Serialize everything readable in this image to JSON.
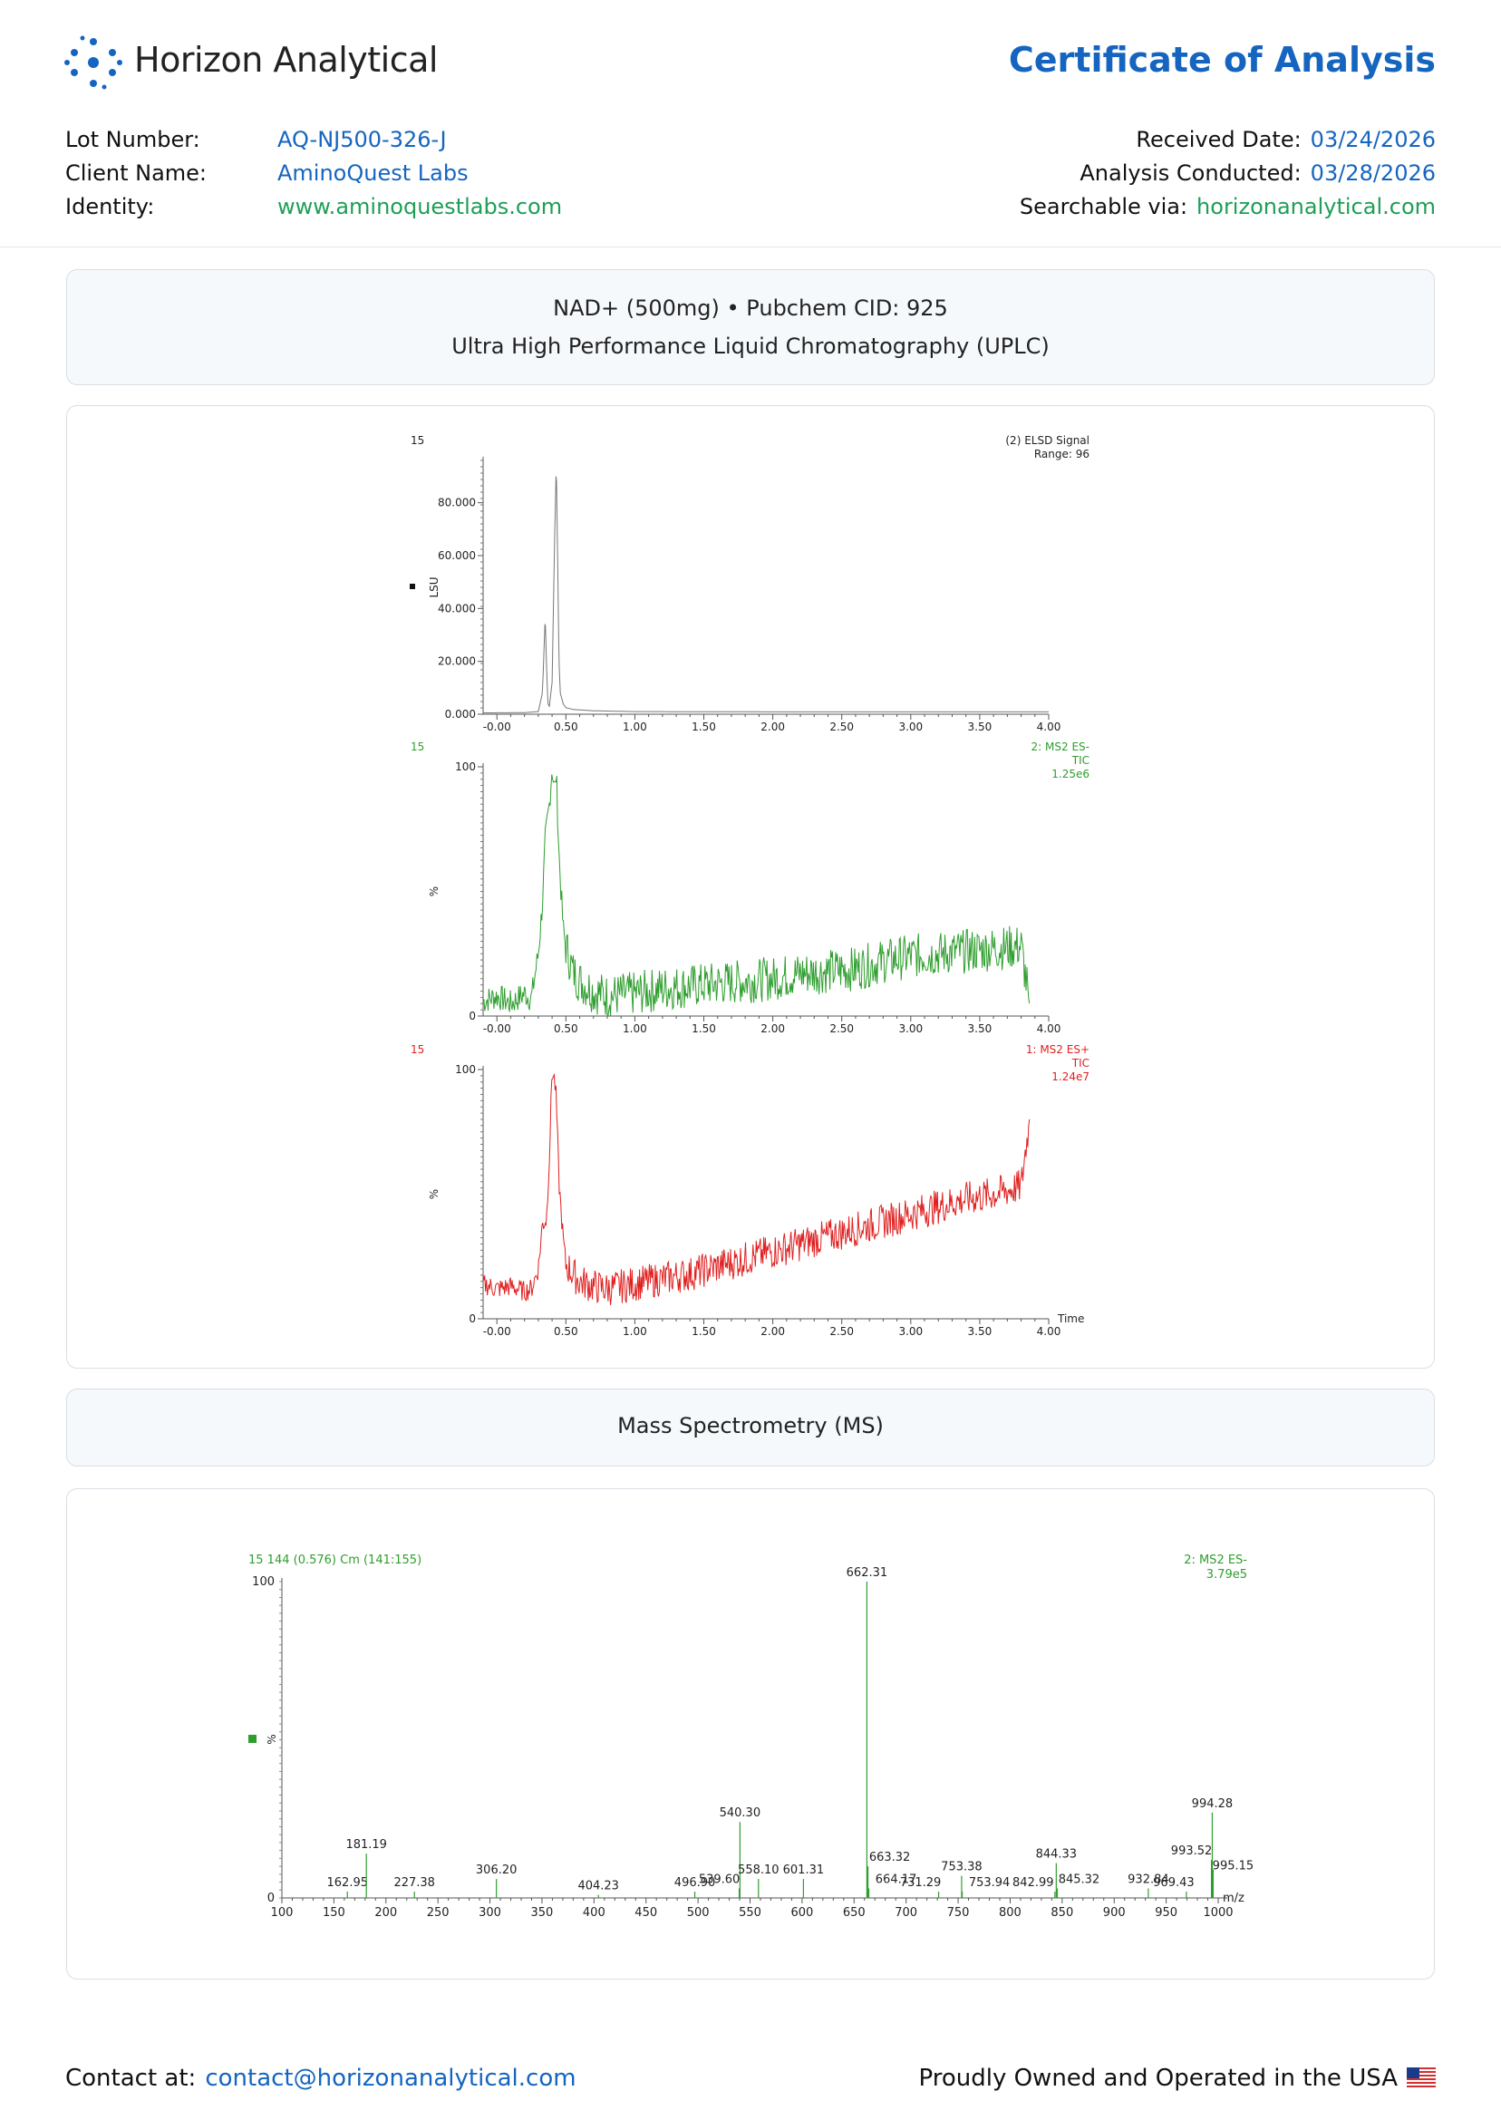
{
  "header": {
    "brand": "Horizon Analytical",
    "doc_title": "Certificate of Analysis"
  },
  "meta_left": [
    {
      "label": "Lot Number:",
      "value": "AQ-NJ500-326-J",
      "color": "#1565c0"
    },
    {
      "label": "Client Name:",
      "value": "AminoQuest Labs",
      "color": "#1565c0"
    },
    {
      "label": "Identity:",
      "value": "www.aminoquestlabs.com",
      "color": "#1e9e57"
    }
  ],
  "meta_right": [
    {
      "label": "Received Date:",
      "value": "03/24/2026",
      "color": "#1565c0"
    },
    {
      "label": "Analysis Conducted:",
      "value": "03/28/2026",
      "color": "#1565c0"
    },
    {
      "label": "Searchable via:",
      "value": "horizonanalytical.com",
      "color": "#1e9e57"
    }
  ],
  "compound_panel": {
    "line1": "NAD+ (500mg) • Pubchem CID: 925",
    "line2": "Ultra High Performance Liquid Chromatography (UPLC)"
  },
  "ms_panel": {
    "title": "Mass Spectrometry (MS)"
  },
  "footer": {
    "contact_label": "Contact at:",
    "contact_email": "contact@horizonanalytical.com",
    "tagline": "Proudly Owned and Operated in the USA",
    "flag_icon": "us-flag-icon"
  },
  "chart_data": [
    {
      "type": "line",
      "sample_label": "15",
      "title_lines": [
        "(2) ELSD Signal",
        "Range: 96"
      ],
      "ylabel": "LSU",
      "color": "#777777",
      "xlim": [
        -0.1,
        4.0
      ],
      "ylim": [
        0,
        96
      ],
      "x_ticks": [
        "-0.00",
        "0.50",
        "1.00",
        "1.50",
        "2.00",
        "2.50",
        "3.00",
        "3.50",
        "4.00"
      ],
      "y_ticks": [
        "0.000",
        "20.000",
        "40.000",
        "60.000",
        "80.000"
      ],
      "y_tick_values": [
        0,
        20,
        40,
        60,
        80
      ],
      "x": [
        -0.1,
        0.2,
        0.3,
        0.33,
        0.35,
        0.36,
        0.37,
        0.38,
        0.4,
        0.42,
        0.43,
        0.44,
        0.45,
        0.46,
        0.48,
        0.5,
        0.55,
        0.7,
        1.0,
        2.0,
        3.0,
        4.0
      ],
      "values": [
        0.5,
        0.6,
        1.0,
        8,
        37,
        18,
        4,
        3,
        12,
        70,
        95,
        60,
        20,
        8,
        4,
        2.5,
        1.8,
        1.3,
        1.0,
        0.9,
        0.9,
        0.9
      ]
    },
    {
      "type": "line",
      "sample_label": "15",
      "title_lines": [
        "2: MS2 ES-",
        "TIC",
        "1.25e6"
      ],
      "ylabel": "%",
      "color": "#2e9e2e",
      "xlim": [
        -0.1,
        4.0
      ],
      "ylim": [
        0,
        100
      ],
      "x_ticks": [
        "-0.00",
        "0.50",
        "1.00",
        "1.50",
        "2.00",
        "2.50",
        "3.00",
        "3.50",
        "4.00"
      ],
      "y_ticks": [
        "0",
        "100"
      ],
      "y_tick_values": [
        0,
        100
      ],
      "x": [
        -0.1,
        0.0,
        0.1,
        0.2,
        0.25,
        0.3,
        0.33,
        0.35,
        0.38,
        0.4,
        0.42,
        0.43,
        0.45,
        0.48,
        0.5,
        0.55,
        0.6,
        0.7,
        0.8,
        1.0,
        1.2,
        1.4,
        1.6,
        1.8,
        2.0,
        2.2,
        2.4,
        2.6,
        2.8,
        3.0,
        3.2,
        3.4,
        3.6,
        3.8,
        3.86
      ],
      "values": [
        6,
        8,
        5,
        9,
        7,
        25,
        45,
        70,
        85,
        100,
        90,
        98,
        65,
        35,
        28,
        18,
        14,
        10,
        8,
        9,
        11,
        12,
        13,
        14,
        15,
        17,
        18,
        19,
        22,
        24,
        25,
        26,
        27,
        28,
        5
      ]
    },
    {
      "type": "line",
      "sample_label": "15",
      "title_lines": [
        "1: MS2 ES+",
        "TIC",
        "1.24e7"
      ],
      "ylabel": "%",
      "xlabel": "Time",
      "color": "#e02020",
      "xlim": [
        -0.1,
        4.0
      ],
      "ylim": [
        0,
        100
      ],
      "x_ticks": [
        "-0.00",
        "0.50",
        "1.00",
        "1.50",
        "2.00",
        "2.50",
        "3.00",
        "3.50",
        "4.00"
      ],
      "y_ticks": [
        "0",
        "100"
      ],
      "y_tick_values": [
        0,
        100
      ],
      "x": [
        -0.1,
        0.0,
        0.1,
        0.2,
        0.25,
        0.3,
        0.33,
        0.36,
        0.38,
        0.4,
        0.42,
        0.43,
        0.45,
        0.48,
        0.5,
        0.55,
        0.6,
        0.7,
        0.8,
        1.0,
        1.2,
        1.4,
        1.6,
        1.8,
        2.0,
        2.2,
        2.4,
        2.6,
        2.8,
        3.0,
        3.2,
        3.4,
        3.6,
        3.8,
        3.86
      ],
      "values": [
        14,
        12,
        13,
        11,
        12,
        20,
        38,
        40,
        65,
        100,
        95,
        88,
        55,
        32,
        22,
        18,
        15,
        13,
        12,
        14,
        16,
        18,
        21,
        24,
        27,
        30,
        33,
        36,
        39,
        42,
        45,
        48,
        50,
        53,
        80
      ]
    },
    {
      "type": "bar",
      "header_left": "15 144 (0.576) Cm (141:155)",
      "header_right": [
        "2: MS2 ES-",
        "3.79e5"
      ],
      "ylabel": "%",
      "xlabel": "m/z",
      "color": "#2e9e2e",
      "xlim": [
        100,
        1000
      ],
      "ylim": [
        0,
        100
      ],
      "x_ticks": [
        "100",
        "150",
        "200",
        "250",
        "300",
        "350",
        "400",
        "450",
        "500",
        "550",
        "600",
        "650",
        "700",
        "750",
        "800",
        "850",
        "900",
        "950",
        "1000"
      ],
      "y_ticks": [
        "0",
        "100"
      ],
      "y_tick_values": [
        0,
        100
      ],
      "peaks": [
        {
          "mz": 162.95,
          "label": "162.95",
          "value": 2
        },
        {
          "mz": 181.19,
          "label": "181.19",
          "value": 14
        },
        {
          "mz": 227.38,
          "label": "227.38",
          "value": 2
        },
        {
          "mz": 306.2,
          "label": "306.20",
          "value": 6
        },
        {
          "mz": 404.23,
          "label": "404.23",
          "value": 1
        },
        {
          "mz": 496.9,
          "label": "496.90",
          "value": 2
        },
        {
          "mz": 539.6,
          "label": "539.60",
          "value": 3
        },
        {
          "mz": 540.3,
          "label": "540.30",
          "value": 24
        },
        {
          "mz": 558.1,
          "label": "558.10",
          "value": 6
        },
        {
          "mz": 601.31,
          "label": "601.31",
          "value": 6
        },
        {
          "mz": 662.31,
          "label": "662.31",
          "value": 100
        },
        {
          "mz": 663.32,
          "label": "663.32",
          "value": 10
        },
        {
          "mz": 664.17,
          "label": "664.17",
          "value": 3
        },
        {
          "mz": 731.29,
          "label": "731.29",
          "value": 2
        },
        {
          "mz": 753.38,
          "label": "753.38",
          "value": 7
        },
        {
          "mz": 753.94,
          "label": "753.94",
          "value": 2
        },
        {
          "mz": 842.99,
          "label": "842.99",
          "value": 2
        },
        {
          "mz": 844.33,
          "label": "844.33",
          "value": 11
        },
        {
          "mz": 845.32,
          "label": "845.32",
          "value": 3
        },
        {
          "mz": 932.84,
          "label": "932.84",
          "value": 3
        },
        {
          "mz": 969.43,
          "label": "969.43",
          "value": 2
        },
        {
          "mz": 993.52,
          "label": "993.52",
          "value": 12
        },
        {
          "mz": 994.28,
          "label": "994.28",
          "value": 27
        },
        {
          "mz": 995.15,
          "label": "995.15",
          "value": 9
        }
      ]
    }
  ]
}
